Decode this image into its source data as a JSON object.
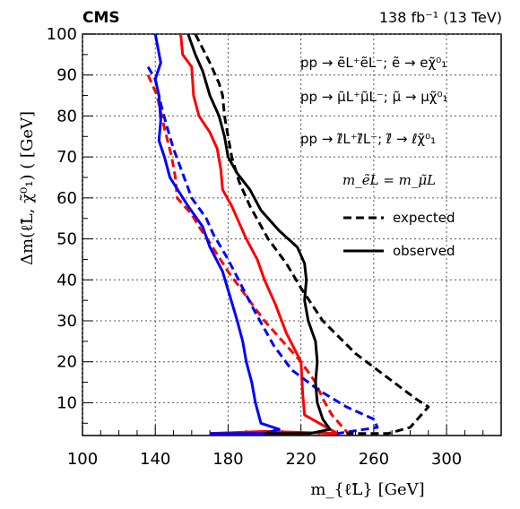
{
  "header": {
    "experiment": "CMS",
    "luminosity_label": "138 fb⁻¹ (13 TeV)"
  },
  "chart_data": {
    "type": "line",
    "xlabel": "m_{ℓ̃L} [GeV]",
    "ylabel": "Δm(ℓ̃L, χ̃⁰₁) ( [GeV]",
    "xlim": [
      100,
      330
    ],
    "ylim": [
      2,
      100
    ],
    "x_ticks": [
      100,
      140,
      180,
      220,
      260,
      300
    ],
    "y_ticks": [
      10,
      20,
      30,
      40,
      50,
      60,
      70,
      80,
      90,
      100
    ],
    "grid": true,
    "legend_position": "top-right",
    "legend": {
      "process_entries": [
        {
          "text": "pp → ẽL⁺ẽL⁻; ẽ → eχ̃⁰₁",
          "color": "#ff0000"
        },
        {
          "text": "pp → μ̃L⁺μ̃L⁻; μ̃ → μχ̃⁰₁",
          "color": "#0000ff"
        },
        {
          "text": "pp → ℓ̃L⁺ℓ̃L⁻; ℓ̃ → ℓχ̃⁰₁",
          "color": "#000000"
        }
      ],
      "mass_condition": "m_ẽL = m_μ̃L",
      "line_styles": [
        {
          "text": "expected",
          "style": "dashed"
        },
        {
          "text": "observed",
          "style": "solid"
        }
      ]
    },
    "series": [
      {
        "name": "selectron observed",
        "color": "#ff0000",
        "style": "solid",
        "points": [
          [
            154,
            100
          ],
          [
            155,
            95
          ],
          [
            160,
            92
          ],
          [
            161,
            85
          ],
          [
            164,
            80
          ],
          [
            170,
            76
          ],
          [
            174,
            72
          ],
          [
            176,
            67
          ],
          [
            177,
            62
          ],
          [
            182,
            58
          ],
          [
            186,
            54
          ],
          [
            190,
            50
          ],
          [
            196,
            45
          ],
          [
            200,
            40
          ],
          [
            206,
            34
          ],
          [
            212,
            27
          ],
          [
            220,
            20
          ],
          [
            221,
            12
          ],
          [
            222,
            7
          ],
          [
            240,
            2.5
          ],
          [
            200,
            3
          ],
          [
            170,
            2.5
          ]
        ]
      },
      {
        "name": "selectron expected",
        "color": "#ff0000",
        "style": "dashed",
        "points": [
          [
            136,
            90
          ],
          [
            138,
            88
          ],
          [
            141,
            85
          ],
          [
            145,
            77
          ],
          [
            149,
            70
          ],
          [
            151,
            65
          ],
          [
            152,
            60
          ],
          [
            160,
            56
          ],
          [
            164,
            53
          ],
          [
            170,
            49
          ],
          [
            180,
            42
          ],
          [
            190,
            36
          ],
          [
            200,
            30
          ],
          [
            210,
            25
          ],
          [
            220,
            20
          ],
          [
            228,
            15
          ],
          [
            232,
            11
          ],
          [
            237,
            7
          ],
          [
            246,
            2.5
          ]
        ]
      },
      {
        "name": "smuon observed",
        "color": "#0000ff",
        "style": "solid",
        "points": [
          [
            140,
            100
          ],
          [
            143,
            93
          ],
          [
            140,
            89
          ],
          [
            142,
            85
          ],
          [
            143,
            79
          ],
          [
            142,
            74
          ],
          [
            145,
            70
          ],
          [
            148,
            65
          ],
          [
            158,
            58
          ],
          [
            166,
            53
          ],
          [
            170,
            48
          ],
          [
            177,
            42
          ],
          [
            181,
            36
          ],
          [
            185,
            30
          ],
          [
            188,
            25
          ],
          [
            190,
            20
          ],
          [
            193,
            15
          ],
          [
            195,
            10
          ],
          [
            198,
            5
          ],
          [
            208,
            3.5
          ],
          [
            200,
            2.5
          ],
          [
            170,
            2.5
          ]
        ]
      },
      {
        "name": "smuon expected",
        "color": "#0000ff",
        "style": "dashed",
        "points": [
          [
            136,
            92
          ],
          [
            140,
            89
          ],
          [
            143,
            83
          ],
          [
            146,
            78
          ],
          [
            150,
            72
          ],
          [
            155,
            66
          ],
          [
            160,
            60
          ],
          [
            168,
            55
          ],
          [
            172,
            51
          ],
          [
            180,
            45
          ],
          [
            188,
            38
          ],
          [
            195,
            32
          ],
          [
            205,
            24
          ],
          [
            215,
            18
          ],
          [
            230,
            13
          ],
          [
            245,
            9
          ],
          [
            260,
            6
          ],
          [
            262,
            4
          ],
          [
            240,
            2.5
          ]
        ]
      },
      {
        "name": "combined observed",
        "color": "#000000",
        "style": "solid",
        "points": [
          [
            158,
            100
          ],
          [
            162,
            95
          ],
          [
            166,
            91
          ],
          [
            170,
            85
          ],
          [
            175,
            80
          ],
          [
            178,
            75
          ],
          [
            180,
            70
          ],
          [
            185,
            66
          ],
          [
            192,
            62
          ],
          [
            198,
            57
          ],
          [
            208,
            52
          ],
          [
            218,
            48
          ],
          [
            222,
            44
          ],
          [
            223,
            40
          ],
          [
            222,
            35
          ],
          [
            224,
            30
          ],
          [
            228,
            25
          ],
          [
            229,
            20
          ],
          [
            228,
            15
          ],
          [
            229,
            10
          ],
          [
            232,
            6
          ],
          [
            236,
            3.5
          ],
          [
            225,
            2.5
          ],
          [
            200,
            2.5
          ]
        ]
      },
      {
        "name": "combined expected",
        "color": "#000000",
        "style": "dashed",
        "points": [
          [
            162,
            100
          ],
          [
            170,
            93
          ],
          [
            175,
            88
          ],
          [
            177,
            85
          ],
          [
            178,
            80
          ],
          [
            180,
            75
          ],
          [
            182,
            70
          ],
          [
            186,
            64
          ],
          [
            192,
            58
          ],
          [
            202,
            50
          ],
          [
            212,
            44
          ],
          [
            220,
            38
          ],
          [
            232,
            30
          ],
          [
            250,
            22
          ],
          [
            268,
            16
          ],
          [
            283,
            11
          ],
          [
            290,
            9
          ],
          [
            280,
            4
          ],
          [
            268,
            2.5
          ],
          [
            245,
            2.5
          ]
        ]
      }
    ]
  }
}
